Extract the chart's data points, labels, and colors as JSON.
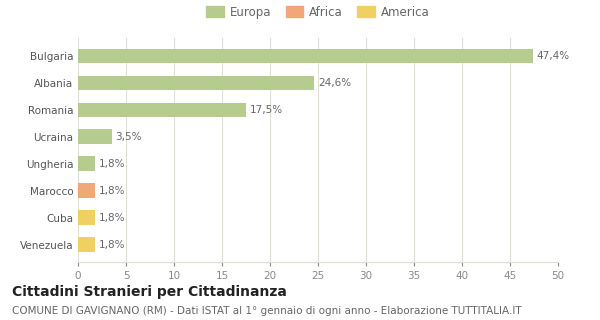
{
  "categories": [
    "Venezuela",
    "Cuba",
    "Marocco",
    "Ungheria",
    "Ucraina",
    "Romania",
    "Albania",
    "Bulgaria"
  ],
  "values": [
    1.8,
    1.8,
    1.8,
    1.8,
    3.5,
    17.5,
    24.6,
    47.4
  ],
  "labels": [
    "1,8%",
    "1,8%",
    "1,8%",
    "1,8%",
    "3,5%",
    "17,5%",
    "24,6%",
    "47,4%"
  ],
  "bar_colors": [
    "#f0d060",
    "#f0d060",
    "#f0a878",
    "#b5cc8e",
    "#b5cc8e",
    "#b5cc8e",
    "#b5cc8e",
    "#b5cc8e"
  ],
  "legend_labels": [
    "Europa",
    "Africa",
    "America"
  ],
  "legend_colors": [
    "#b5cc8e",
    "#f0a878",
    "#f0d060"
  ],
  "xlim": [
    0,
    50
  ],
  "xticks": [
    0,
    5,
    10,
    15,
    20,
    25,
    30,
    35,
    40,
    45,
    50
  ],
  "title": "Cittadini Stranieri per Cittadinanza",
  "subtitle": "COMUNE DI GAVIGNANO (RM) - Dati ISTAT al 1° gennaio di ogni anno - Elaborazione TUTTITALIA.IT",
  "bg_color": "#ffffff",
  "grid_color": "#e0e0d0",
  "bar_height": 0.55,
  "title_fontsize": 10,
  "subtitle_fontsize": 7.5,
  "label_fontsize": 7.5,
  "tick_fontsize": 7.5,
  "legend_fontsize": 8.5
}
